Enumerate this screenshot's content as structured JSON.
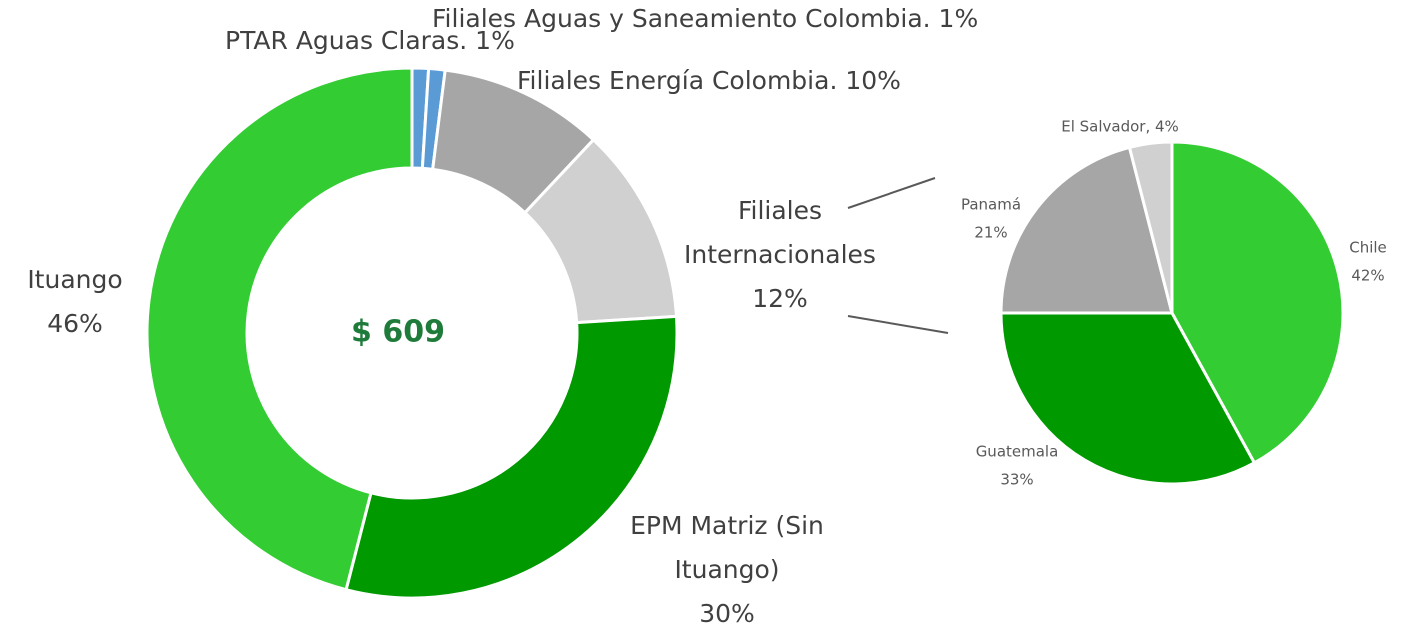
{
  "chart_data": [
    {
      "type": "donut",
      "center_label": "$ 609",
      "values": [
        1,
        1,
        10,
        12,
        30,
        46
      ],
      "colors": [
        "#5b9bd5",
        "#5b9bd5",
        "#a6a6a6",
        "#d0d0d0",
        "#009900",
        "#33cc33"
      ],
      "labels": [
        [
          "PTAR Aguas Claras. 1%"
        ],
        [
          "Filiales Aguas y Saneamiento Colombia. 1%"
        ],
        [
          "Filiales Energía Colombia. 10%"
        ],
        [
          "Filiales",
          "Internacionales",
          "12%"
        ],
        [
          "EPM Matriz (Sin",
          "Ituango)",
          "30%"
        ],
        [
          "Ituango",
          "46%"
        ]
      ]
    },
    {
      "type": "pie",
      "values": [
        42,
        33,
        21,
        4
      ],
      "colors": [
        "#33cc33",
        "#009900",
        "#a6a6a6",
        "#d0d0d0"
      ],
      "labels": [
        [
          "Chile",
          "42%"
        ],
        [
          "Guatemala",
          "33%"
        ],
        [
          "Panamá",
          "21%"
        ],
        [
          "El Salvador, 4%"
        ]
      ]
    }
  ]
}
